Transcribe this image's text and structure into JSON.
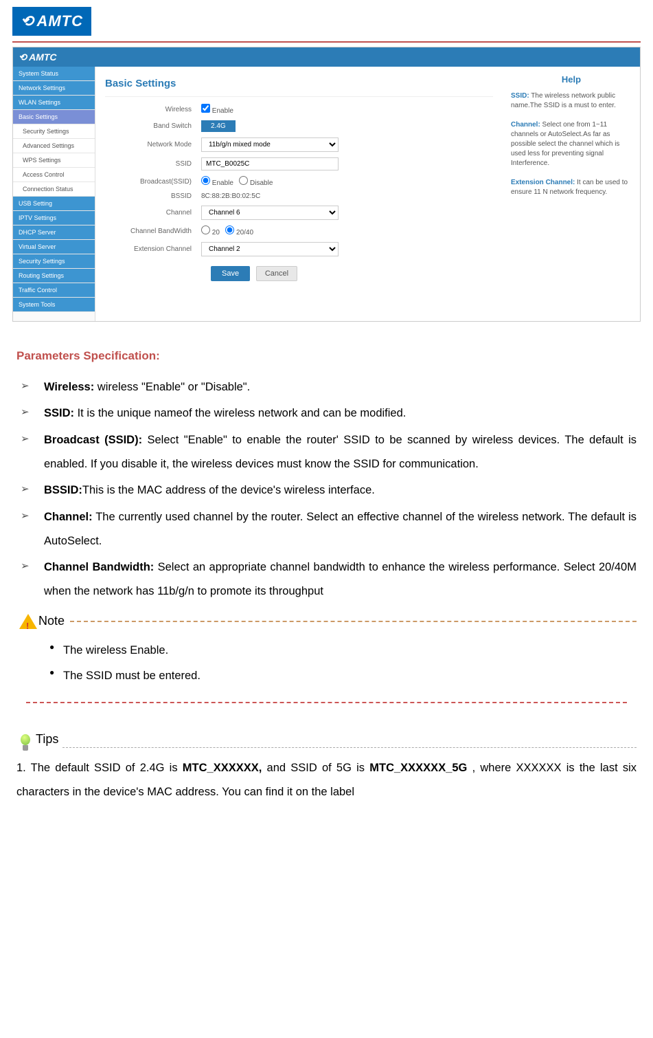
{
  "brand_logo_text": "AMTC",
  "shot": {
    "brand": "AMTC",
    "sidebar": {
      "items": [
        {
          "label": "System Status",
          "cls": "grp"
        },
        {
          "label": "Network Settings",
          "cls": "grp"
        },
        {
          "label": "WLAN Settings",
          "cls": "grp"
        },
        {
          "label": "Basic Settings",
          "cls": "active"
        },
        {
          "label": "Security Settings",
          "cls": "sub"
        },
        {
          "label": "Advanced Settings",
          "cls": "sub"
        },
        {
          "label": "WPS Settings",
          "cls": "sub"
        },
        {
          "label": "Access Control",
          "cls": "sub"
        },
        {
          "label": "Connection Status",
          "cls": "sub"
        },
        {
          "label": "USB Setting",
          "cls": "grp"
        },
        {
          "label": "IPTV Settings",
          "cls": "grp"
        },
        {
          "label": "DHCP Server",
          "cls": "grp"
        },
        {
          "label": "Virtual Server",
          "cls": "grp"
        },
        {
          "label": "Security Settings",
          "cls": "grp"
        },
        {
          "label": "Routing Settings",
          "cls": "grp"
        },
        {
          "label": "Traffic Control",
          "cls": "grp"
        },
        {
          "label": "System Tools",
          "cls": "grp"
        }
      ]
    },
    "main": {
      "title": "Basic Settings",
      "rows": {
        "wireless_label": "Wireless",
        "wireless_enable": "Enable",
        "band_switch_label": "Band Switch",
        "band_switch_btn": "2.4G",
        "network_mode_label": "Network Mode",
        "network_mode_value": "11b/g/n mixed mode",
        "ssid_label": "SSID",
        "ssid_value": "MTC_B0025C",
        "broadcast_label": "Broadcast(SSID)",
        "broadcast_enable": "Enable",
        "broadcast_disable": "Disable",
        "bssid_label": "BSSID",
        "bssid_value": "8C:88:2B:B0:02:5C",
        "channel_label": "Channel",
        "channel_value": "Channel 6",
        "bandwidth_label": "Channel BandWidth",
        "bw_20": "20",
        "bw_2040": "20/40",
        "ext_channel_label": "Extension Channel",
        "ext_channel_value": "Channel 2"
      },
      "save_btn": "Save",
      "cancel_btn": "Cancel"
    },
    "help": {
      "title": "Help",
      "p1_b": "SSID:",
      "p1": " The wireless network public name.The SSID is a must to enter.",
      "p2_b": "Channel:",
      "p2": " Select one from 1~11 channels or AutoSelect.As far as possible select the channel which is used less for preventing signal Interference.",
      "p3_b": "Extension Channel:",
      "p3": " It can be used to ensure 11 N network frequency."
    }
  },
  "doc": {
    "params_title": "Parameters Specification:",
    "items": {
      "wireless_b": "Wireless:",
      "wireless_t": " wireless \"Enable\" or \"Disable\".",
      "ssid_b": "SSID:",
      "ssid_t": " It is the unique nameof the wireless network and can be modified.",
      "broadcast_b": "Broadcast (SSID):",
      "broadcast_t": " Select \"Enable\" to enable the router' SSID to be scanned by wireless devices. The default is enabled. If you disable it, the wireless devices must know the SSID for communication.",
      "bssid_b": "BSSID:",
      "bssid_t": "This is the MAC address of the device's wireless interface.",
      "channel_b": "Channel:",
      "channel_t": " The currently used channel by the router. Select an effective channel of the wireless network. The default is AutoSelect.",
      "bw_b": "Channel Bandwidth:",
      "bw_t": " Select an appropriate channel bandwidth to enhance the wireless performance. Select 20/40M when the network has 11b/g/n to promote its throughput"
    },
    "note_label": "Note",
    "notes": {
      "n1": "The wireless Enable.",
      "n2": "The SSID must be entered."
    },
    "tips_label": "Tips",
    "tips_body_pre": "1. The default SSID of 2.4G is ",
    "tips_ssid24": "MTC_XXXXXX,",
    "tips_mid": " and SSID of 5G is ",
    "tips_ssid5": "MTC_XXXXXX_5G",
    "tips_post": " , where XXXXXX is the last six characters in the device's MAC address. You can find it on the label"
  }
}
